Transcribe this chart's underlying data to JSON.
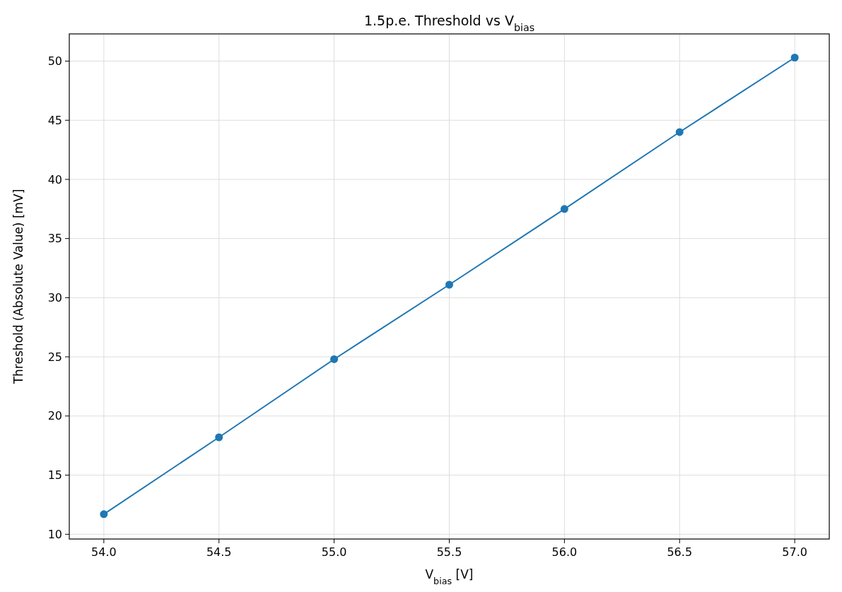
{
  "chart_data": {
    "type": "line",
    "title": "1.5p.e. Threshold vs V$_{bias}$",
    "xlabel": "V$_{bias}$ [V]",
    "ylabel": "Threshold (Absolute Value) [mV]",
    "x": [
      54.0,
      54.5,
      55.0,
      55.5,
      56.0,
      56.5,
      57.0
    ],
    "series": [
      {
        "color": "#1f77b4",
        "values": [
          11.7,
          18.2,
          24.8,
          31.1,
          37.5,
          44.0,
          50.3
        ]
      }
    ],
    "xlim": [
      53.85,
      57.15
    ],
    "xticks": [
      {
        "value": 54,
        "label": "54.0"
      },
      {
        "value": 54.5,
        "label": "54.5"
      },
      {
        "value": 55,
        "label": "55.0"
      },
      {
        "value": 55.5,
        "label": "55.5"
      },
      {
        "value": 56,
        "label": "56.0"
      },
      {
        "value": 56.5,
        "label": "56.5"
      },
      {
        "value": 57,
        "label": "57.0"
      }
    ],
    "ylim": [
      9.6,
      52.3
    ],
    "yticks": [
      10,
      15,
      20,
      25,
      30,
      35,
      40,
      45,
      50
    ],
    "grid": true,
    "marker": "circle",
    "line_style": "solid"
  }
}
